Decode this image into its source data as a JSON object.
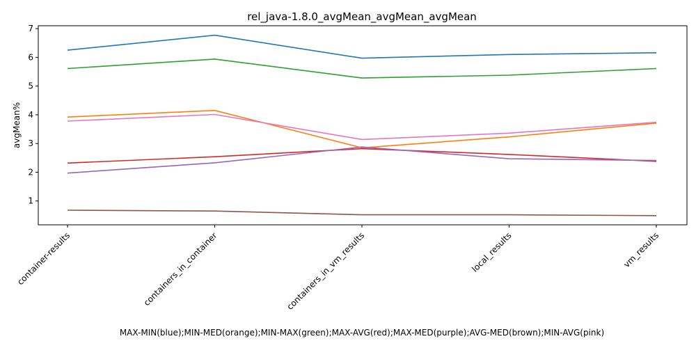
{
  "chart_data": {
    "type": "line",
    "title": "rel_java-1.8.0_avgMean_avgMean_avgMean",
    "xlabel": "MAX-MIN(blue);MIN-MED(orange);MIN-MAX(green);MAX-AVG(red);MAX-MED(purple);AVG-MED(brown);MIN-AVG(pink)",
    "ylabel": "avgMean%",
    "categories": [
      "container-results",
      "containers_in_container",
      "containers_in_vm_results",
      "local_results",
      "vm_results"
    ],
    "yticks": [
      1,
      2,
      3,
      4,
      5,
      6,
      7
    ],
    "ylim": [
      0.17,
      7.1
    ],
    "grid": false,
    "series": [
      {
        "name": "MAX-MIN",
        "color": "#1f77b4",
        "values": [
          6.25,
          6.77,
          5.97,
          6.1,
          6.16
        ]
      },
      {
        "name": "MIN-MED",
        "color": "#ff7f0e",
        "values": [
          3.92,
          4.15,
          2.85,
          3.23,
          3.71
        ]
      },
      {
        "name": "MIN-MAX",
        "color": "#2ca02c",
        "values": [
          5.61,
          5.94,
          5.28,
          5.38,
          5.61
        ]
      },
      {
        "name": "MAX-AVG",
        "color": "#d62728",
        "values": [
          2.32,
          2.54,
          2.82,
          2.62,
          2.38
        ]
      },
      {
        "name": "MAX-MED",
        "color": "#9467bd",
        "values": [
          1.97,
          2.33,
          2.88,
          2.47,
          2.41
        ]
      },
      {
        "name": "AVG-MED",
        "color": "#8c564b",
        "values": [
          0.68,
          0.65,
          0.52,
          0.52,
          0.49
        ]
      },
      {
        "name": "MIN-AVG",
        "color": "#e377c2",
        "values": [
          3.78,
          4.01,
          3.14,
          3.36,
          3.74
        ]
      }
    ]
  }
}
